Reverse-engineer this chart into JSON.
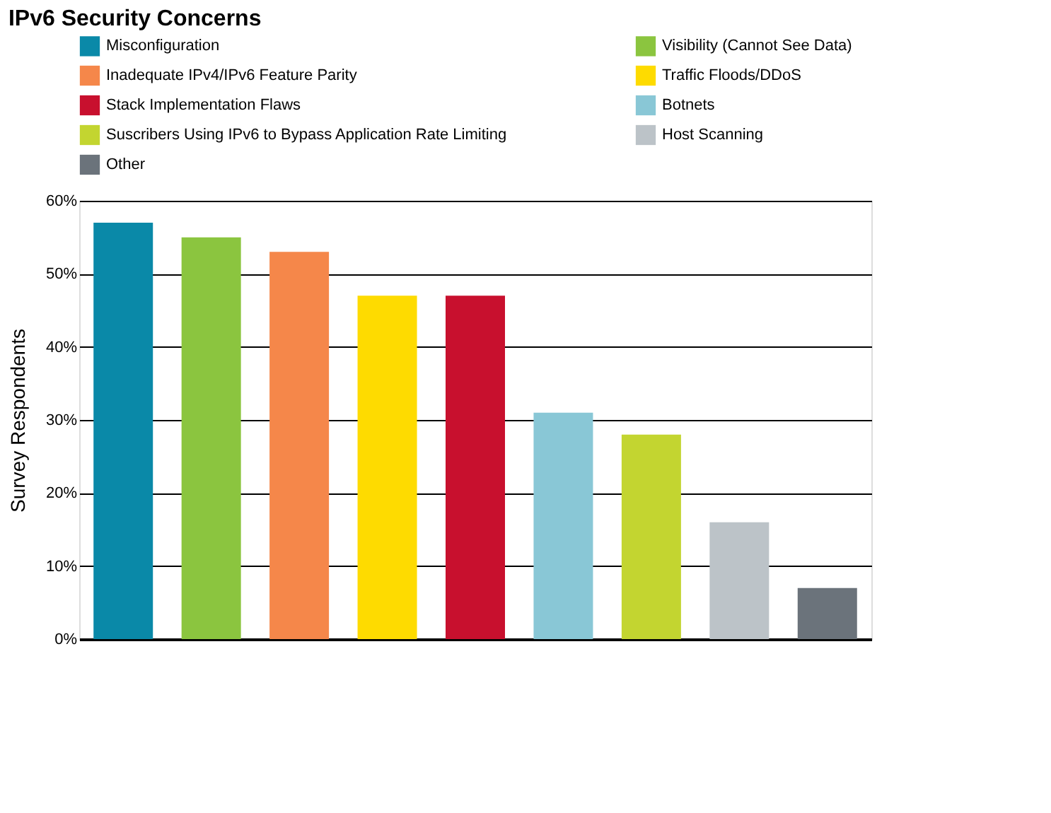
{
  "chart_data": {
    "type": "bar",
    "title": "IPv6 Security Concerns",
    "ylabel": "Survey Respondents",
    "categories": [
      null,
      null,
      null,
      null,
      null,
      null,
      null,
      null,
      null
    ],
    "series": [
      {
        "name": "Misconfiguration",
        "color": "#0a89a8",
        "values": [
          57,
          null,
          null,
          null,
          null,
          null,
          null,
          null,
          null
        ]
      },
      {
        "name": "Visibility (Cannot See Data)",
        "color": "#8bc53f",
        "values": [
          null,
          55,
          null,
          null,
          null,
          null,
          null,
          null,
          null
        ]
      },
      {
        "name": "Inadequate IPv4/IPv6 Feature Parity",
        "color": "#f5874a",
        "values": [
          null,
          null,
          53,
          null,
          null,
          null,
          null,
          null,
          null
        ]
      },
      {
        "name": "Traffic Floods/DDoS",
        "color": "#fedb00",
        "values": [
          null,
          null,
          null,
          47,
          null,
          null,
          null,
          null,
          null
        ]
      },
      {
        "name": "Stack Implementation Flaws",
        "color": "#c8102e",
        "values": [
          null,
          null,
          null,
          null,
          47,
          null,
          null,
          null,
          null
        ]
      },
      {
        "name": "Botnets",
        "color": "#89c7d6",
        "values": [
          null,
          null,
          null,
          null,
          null,
          31,
          null,
          null,
          null
        ]
      },
      {
        "name": "Suscribers Using IPv6 to Bypass Application Rate Limiting",
        "color": "#c3d530",
        "values": [
          null,
          null,
          null,
          null,
          null,
          null,
          28,
          null,
          null
        ]
      },
      {
        "name": "Host Scanning",
        "color": "#bcc3c8",
        "values": [
          null,
          null,
          null,
          null,
          null,
          null,
          null,
          16,
          null
        ]
      },
      {
        "name": "Other",
        "color": "#6b737b",
        "values": [
          null,
          null,
          null,
          null,
          null,
          null,
          null,
          null,
          7
        ]
      }
    ],
    "ylim": [
      0,
      60
    ],
    "yticks": [
      {
        "value": 0,
        "label": "0%"
      },
      {
        "value": 10,
        "label": "10%"
      },
      {
        "value": 20,
        "label": "20%"
      },
      {
        "value": 30,
        "label": "30%"
      },
      {
        "value": 40,
        "label": "40%"
      },
      {
        "value": 50,
        "label": "50%"
      },
      {
        "value": 60,
        "label": "60%"
      }
    ],
    "grid": "y",
    "legend": "top",
    "tick_labels": "y"
  }
}
